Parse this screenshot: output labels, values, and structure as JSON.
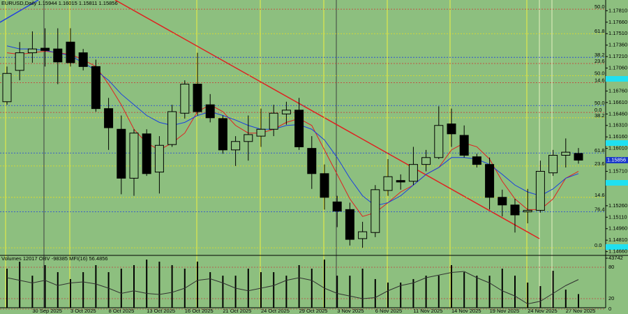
{
  "chart_data": {
    "type": "candlestick",
    "title": "EURUSD,Daily  1.15944 1.16015 1.15811 1.15856",
    "categories": [
      null,
      null,
      "30 Sep 2025",
      null,
      null,
      "3 Oct 2025",
      null,
      null,
      "8 Oct 2025",
      null,
      null,
      "13 Oct 2025",
      null,
      null,
      "16 Oct 2025",
      null,
      null,
      "21 Oct 2025",
      null,
      null,
      "24 Oct 2025",
      null,
      null,
      "29 Oct 2025",
      null,
      null,
      "3 Nov 2025",
      null,
      null,
      "6 Nov 2025",
      null,
      null,
      "11 Nov 2025",
      null,
      null,
      "14 Nov 2025",
      null,
      null,
      "19 Nov 2025",
      null,
      null,
      "24 Nov 2025",
      null,
      null,
      "27 Nov 2025",
      null
    ],
    "open": [
      1.1662,
      1.1703,
      1.1726,
      1.1732,
      1.1731,
      1.174,
      1.1726,
      1.1708,
      1.1653,
      1.1626,
      1.1562,
      1.162,
      1.157,
      1.1606,
      1.1647,
      1.1685,
      1.1658,
      1.164,
      1.1599,
      1.161,
      1.1617,
      1.1626,
      1.1646,
      1.1651,
      1.1601,
      1.1568,
      1.1531,
      1.1521,
      1.1483,
      1.1491,
      1.1546,
      1.1559,
      1.1558,
      1.158,
      1.1589,
      1.1633,
      1.1618,
      1.159,
      1.158,
      1.1537,
      1.1527,
      1.1518,
      1.152,
      1.1569,
      1.1592,
      1.15944
    ],
    "high": [
      1.1708,
      1.174,
      1.1754,
      1.1758,
      1.1758,
      1.1758,
      1.1731,
      1.1717,
      1.1667,
      1.1644,
      1.1626,
      1.1626,
      1.1617,
      1.1658,
      1.169,
      1.1726,
      1.1672,
      1.1644,
      1.1617,
      1.1644,
      1.1653,
      1.1658,
      1.1662,
      1.1667,
      1.1617,
      1.158,
      1.1539,
      1.153,
      1.1505,
      1.1553,
      1.1587,
      1.1567,
      1.1603,
      1.1599,
      1.1656,
      1.1653,
      1.1631,
      1.1594,
      1.1589,
      1.1547,
      1.1535,
      1.1548,
      1.1585,
      1.1599,
      1.1614,
      1.16015
    ],
    "low": [
      1.1658,
      1.169,
      1.1713,
      1.1708,
      1.1685,
      1.1708,
      1.1703,
      1.1649,
      1.1599,
      1.1541,
      1.1539,
      1.1565,
      1.1542,
      1.1603,
      1.164,
      1.1644,
      1.1635,
      1.1594,
      1.1578,
      1.1585,
      1.1603,
      1.1617,
      1.1632,
      1.1599,
      1.1548,
      1.1521,
      1.1498,
      1.1474,
      1.1471,
      1.1485,
      1.1539,
      1.1547,
      1.1553,
      1.1571,
      1.1587,
      1.1603,
      1.1589,
      1.1576,
      1.1521,
      1.1512,
      1.1491,
      1.1503,
      1.1517,
      1.1565,
      1.1576,
      1.15811
    ],
    "close": [
      1.1699,
      1.1726,
      1.1731,
      1.1729,
      1.1714,
      1.1713,
      1.1708,
      1.1653,
      1.1628,
      1.1562,
      1.1621,
      1.1568,
      1.1605,
      1.1649,
      1.1685,
      1.1649,
      1.1641,
      1.1599,
      1.161,
      1.1619,
      1.1626,
      1.1647,
      1.1651,
      1.1603,
      1.1568,
      1.1537,
      1.1519,
      1.1482,
      1.1492,
      1.1547,
      1.1564,
      1.1557,
      1.158,
      1.1589,
      1.1631,
      1.162,
      1.1592,
      1.158,
      1.1537,
      1.1527,
      1.1514,
      1.152,
      1.1571,
      1.1592,
      1.1596,
      1.15856
    ],
    "bull_color": "#8dbf7f",
    "bear_color": "#000000",
    "lines": [
      {
        "color": "#e02020",
        "values": [
          1.1726,
          1.1724,
          1.1726,
          1.1728,
          1.1726,
          1.1724,
          1.1717,
          1.1708,
          1.1685,
          1.1658,
          1.1626,
          1.1608,
          1.1599,
          1.1608,
          1.1621,
          1.1649,
          1.1658,
          1.1649,
          1.1631,
          1.1621,
          1.1621,
          1.1626,
          1.1635,
          1.164,
          1.1631,
          1.1599,
          1.1567,
          1.1535,
          1.1512,
          1.1517,
          1.153,
          1.1544,
          1.1553,
          1.1567,
          1.1576,
          1.1599,
          1.1608,
          1.1603,
          1.1587,
          1.1558,
          1.1535,
          1.1521,
          1.1521,
          1.1535,
          1.1562,
          1.1571
        ]
      },
      {
        "color": "#1a3fe0",
        "values": [
          1.1735,
          1.1731,
          1.1731,
          1.1729,
          1.1726,
          1.1722,
          1.1713,
          1.1703,
          1.169,
          1.1672,
          1.1658,
          1.1644,
          1.1635,
          1.1631,
          1.1635,
          1.1644,
          1.1649,
          1.1644,
          1.1638,
          1.1631,
          1.1626,
          1.1626,
          1.1631,
          1.1632,
          1.1626,
          1.1612,
          1.1589,
          1.1562,
          1.1539,
          1.1526,
          1.153,
          1.1539,
          1.1553,
          1.1567,
          1.1576,
          1.1589,
          1.1589,
          1.1587,
          1.158,
          1.1567,
          1.1553,
          1.1544,
          1.1539,
          1.1548,
          1.1562,
          1.1568
        ]
      }
    ],
    "ylim": [
      1.1462,
      1.1795
    ],
    "yticks": [
      {
        "value": 1.1781,
        "label": "1.17810"
      },
      {
        "value": 1.1766,
        "label": "1.17660"
      },
      {
        "value": 1.1751,
        "label": "1.17510"
      },
      {
        "value": 1.1736,
        "label": "1.17360"
      },
      {
        "value": 1.1721,
        "label": "1.17210"
      },
      {
        "value": 1.1706,
        "label": "1.17060"
      },
      {
        "value": 1.1676,
        "label": "1.16760"
      },
      {
        "value": 1.1661,
        "label": "1.16610"
      },
      {
        "value": 1.1646,
        "label": "1.16460"
      },
      {
        "value": 1.1631,
        "label": "1.16310"
      },
      {
        "value": 1.1616,
        "label": "1.16160"
      },
      {
        "value": 1.1601,
        "label": "1.16010"
      },
      {
        "value": 1.1571,
        "label": "1.15710"
      },
      {
        "value": 1.1526,
        "label": "1.15260"
      },
      {
        "value": 1.1511,
        "label": "1.15110"
      },
      {
        "value": 1.1496,
        "label": "1.14960"
      },
      {
        "value": 1.1481,
        "label": "1.14810"
      },
      {
        "value": 1.1466,
        "label": "1.14660"
      }
    ],
    "fibo": [
      {
        "level": "50.0",
        "price": 1.1783,
        "color": "#d03030"
      },
      {
        "level": "23.6",
        "price": 1.1712,
        "color": "#d03030"
      },
      {
        "level": "14.6",
        "price": 1.1687,
        "color": "#d03030"
      },
      {
        "level": "0.0",
        "price": 1.1648,
        "color": "#d03030"
      },
      {
        "level": "61.8",
        "price": 1.1751,
        "color": "#e8e020"
      },
      {
        "level": "50.0",
        "price": 1.1696,
        "color": "#e8e020"
      },
      {
        "level": "38.2",
        "price": 1.1641,
        "color": "#e8e020"
      },
      {
        "level": "23.6",
        "price": 1.1578,
        "color": "#e8e020"
      },
      {
        "level": "14.6",
        "price": 1.1537,
        "color": "#e8e020"
      },
      {
        "level": "0.0",
        "price": 1.1471,
        "color": "#e8e020"
      },
      {
        "level": "38.2",
        "price": 1.172,
        "color": "#2040e0"
      },
      {
        "level": "50.0",
        "price": 1.1657,
        "color": "#2040e0"
      },
      {
        "level": "61.8",
        "price": 1.1595,
        "color": "#2040e0"
      },
      {
        "level": "76.4",
        "price": 1.1518,
        "color": "#2040e0"
      }
    ],
    "volume_panel": {
      "label": "Volumes 12017  OBV -98385  MFI(16) 56.4856",
      "volumes": [
        34500,
        40700,
        28300,
        37600,
        31400,
        25300,
        31400,
        37600,
        31400,
        34500,
        37600,
        42500,
        40700,
        37600,
        34500,
        40700,
        31400,
        28300,
        28300,
        34500,
        31400,
        31400,
        28300,
        37600,
        34500,
        42500,
        28300,
        28300,
        34500,
        25300,
        22200,
        22200,
        25300,
        28300,
        28300,
        37600,
        31400,
        28300,
        28300,
        34500,
        28300,
        22200,
        19100,
        32600,
        16000,
        12017
      ],
      "vlim": [
        0,
        43742
      ],
      "vticks": [
        43742
      ],
      "mfi": [
        60,
        55,
        50,
        55,
        45,
        50,
        52,
        48,
        40,
        30,
        35,
        30,
        28,
        32,
        40,
        55,
        58,
        50,
        40,
        35,
        40,
        45,
        55,
        60,
        55,
        40,
        30,
        25,
        20,
        22,
        35,
        45,
        50,
        60,
        65,
        70,
        72,
        60,
        50,
        35,
        25,
        10,
        15,
        30,
        45,
        56.4856
      ],
      "mfi_color": "#303030",
      "mfilim": [
        0,
        100
      ],
      "mfiticks": [
        80,
        20,
        0
      ]
    }
  }
}
